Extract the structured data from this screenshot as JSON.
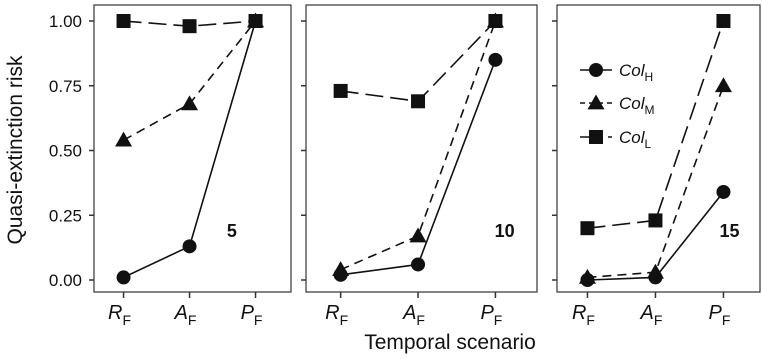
{
  "chart_data": {
    "type": "line",
    "ylabel": "Quasi-extinction risk",
    "xlabel": "Temporal scenario",
    "ylim": [
      0,
      1
    ],
    "yticks": [
      "0.00",
      "0.25",
      "0.50",
      "0.75",
      "1.00"
    ],
    "ytick_values": [
      0,
      0.25,
      0.5,
      0.75,
      1
    ],
    "categories": [
      {
        "main": "R",
        "sub": "F"
      },
      {
        "main": "A",
        "sub": "F"
      },
      {
        "main": "P",
        "sub": "F"
      }
    ],
    "legend": [
      {
        "main": "Col",
        "sub": "H",
        "marker": "circle",
        "dash": "solid"
      },
      {
        "main": "Col",
        "sub": "M",
        "marker": "triangle",
        "dash": "medium"
      },
      {
        "main": "Col",
        "sub": "L",
        "marker": "square",
        "dash": "long"
      }
    ],
    "legend_location": "panel-3-upper-left",
    "panels": [
      {
        "label": "5",
        "series": [
          {
            "values": [
              0.01,
              0.13,
              1.0
            ]
          },
          {
            "values": [
              0.54,
              0.68,
              1.0
            ]
          },
          {
            "values": [
              1.0,
              0.98,
              1.0
            ]
          }
        ]
      },
      {
        "label": "10",
        "series": [
          {
            "values": [
              0.02,
              0.06,
              0.85
            ]
          },
          {
            "values": [
              0.04,
              0.17,
              1.0
            ]
          },
          {
            "values": [
              0.73,
              0.69,
              1.0
            ]
          }
        ]
      },
      {
        "label": "15",
        "series": [
          {
            "values": [
              0.0,
              0.01,
              0.34
            ]
          },
          {
            "values": [
              0.01,
              0.03,
              0.75
            ]
          },
          {
            "values": [
              0.2,
              0.23,
              1.0
            ]
          }
        ]
      }
    ],
    "colors": {
      "ink": "#111111",
      "frame": "#333333"
    }
  }
}
